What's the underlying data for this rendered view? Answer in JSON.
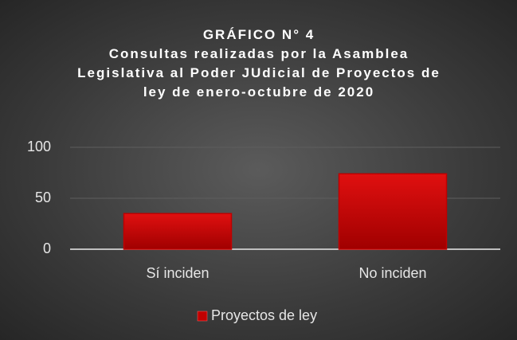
{
  "chart_data": {
    "type": "bar",
    "title": "GRÁFICO N° 4",
    "subtitle": "Consultas realizadas por la Asamblea Legislativa al Poder JUdicial de Proyectos de ley de enero-octubre de 2020",
    "categories": [
      "Sí inciden",
      "No inciden"
    ],
    "series": [
      {
        "name": "Proyectos de ley",
        "color": "#c00000",
        "values": [
          35,
          74
        ]
      }
    ],
    "ylim": [
      0,
      100
    ],
    "yticks": [
      0,
      50,
      100
    ],
    "grid": true,
    "legend": "bottom"
  }
}
